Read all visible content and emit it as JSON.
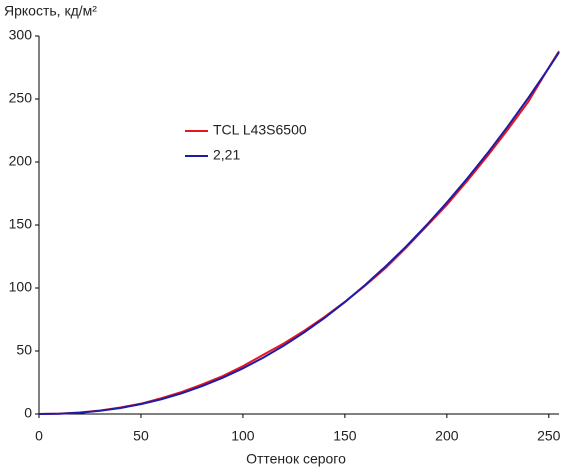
{
  "chart_data": {
    "type": "line",
    "title": "Яркость, кд/м²",
    "xlabel": "Оттенок серого",
    "x": [
      0,
      10,
      20,
      30,
      40,
      50,
      60,
      70,
      80,
      90,
      100,
      110,
      120,
      130,
      140,
      150,
      160,
      170,
      180,
      190,
      200,
      210,
      220,
      230,
      240,
      250,
      255
    ],
    "series": [
      {
        "name": "TCL L43S6500",
        "color": "#e8141e",
        "values": [
          0,
          0.3,
          1.2,
          2.8,
          5.2,
          8.2,
          12.5,
          17.5,
          23.5,
          30,
          38,
          47,
          56,
          66,
          77,
          89,
          102,
          116,
          132,
          149,
          166,
          185,
          205,
          226,
          248,
          275,
          288
        ]
      },
      {
        "name": "2,21",
        "color": "#1c1ca8",
        "values": [
          0,
          0.22,
          1.03,
          2.53,
          4.79,
          7.84,
          11.72,
          16.48,
          22.15,
          28.73,
          36.25,
          44.74,
          54.24,
          64.75,
          76.28,
          88.86,
          102.5,
          117.2,
          132.9,
          149.8,
          167.8,
          186.9,
          207.1,
          228.5,
          251.0,
          274.7,
          287
        ]
      }
    ],
    "xlim": [
      0,
      255
    ],
    "xticks": [
      0,
      50,
      100,
      150,
      200,
      250
    ],
    "ylim": [
      0,
      300
    ],
    "yticks": [
      0,
      50,
      100,
      150,
      200,
      250,
      300
    ],
    "grid": false
  }
}
